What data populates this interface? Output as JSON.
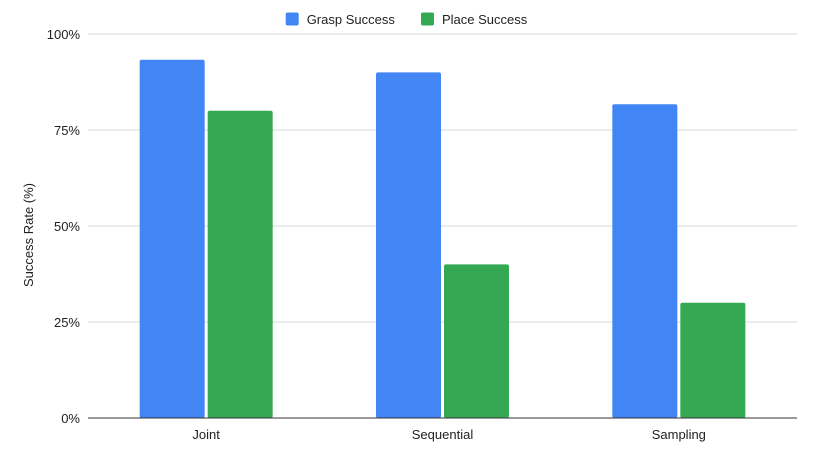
{
  "chart_data": {
    "type": "bar",
    "categories": [
      "Joint",
      "Sequential",
      "Sampling"
    ],
    "series": [
      {
        "name": "Grasp Success",
        "values": [
          93.3,
          90.0,
          81.7
        ],
        "color": "#4285f4"
      },
      {
        "name": "Place Success",
        "values": [
          80.0,
          40.0,
          30.0
        ],
        "color": "#34a853"
      }
    ],
    "ylabel": "Success Rate (%)",
    "ylim": [
      0,
      100
    ],
    "yticks": [
      0,
      25,
      50,
      75,
      100
    ],
    "ytick_labels": [
      "0%",
      "25%",
      "50%",
      "75%",
      "100%"
    ],
    "grid": true,
    "legend_position": "top"
  }
}
